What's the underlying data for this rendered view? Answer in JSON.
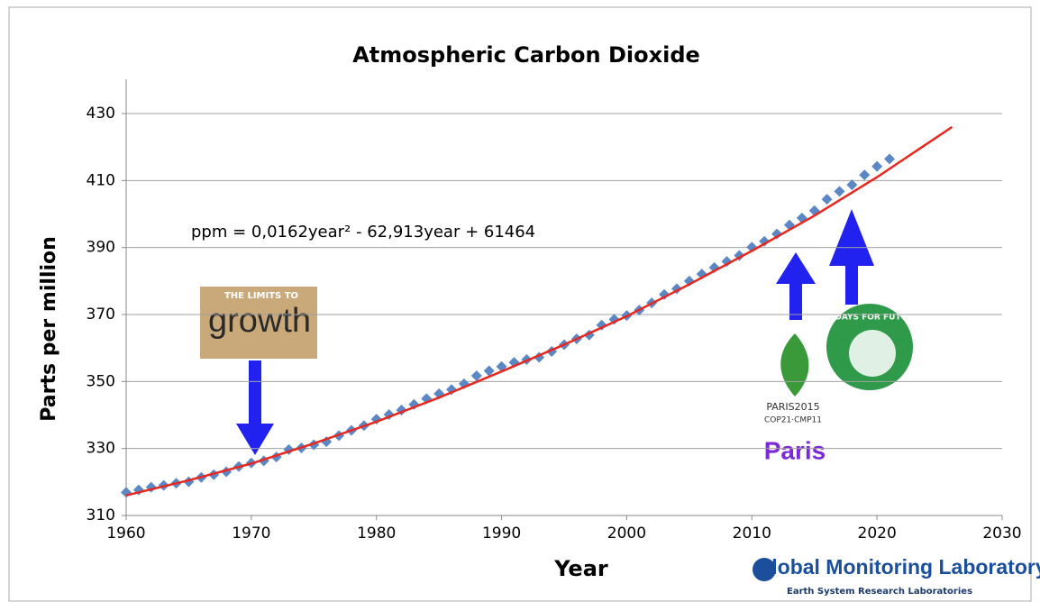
{
  "chart_data": {
    "type": "scatter",
    "title": "Atmospheric Carbon Dioxide",
    "x_label": "Year",
    "y_label": "Parts per million",
    "xlim": [
      1960,
      2030
    ],
    "xticks": [
      1960,
      1970,
      1980,
      1990,
      2000,
      2010,
      2020,
      2030
    ],
    "ylim": [
      310,
      430
    ],
    "yticks": [
      310,
      330,
      350,
      370,
      390,
      410,
      430
    ],
    "grid": true,
    "series": [
      {
        "type": "scatter",
        "color": "#5b87c5",
        "x": [
          1960,
          1961,
          1962,
          1963,
          1964,
          1965,
          1966,
          1967,
          1968,
          1969,
          1970,
          1971,
          1972,
          1973,
          1974,
          1975,
          1976,
          1977,
          1978,
          1979,
          1980,
          1981,
          1982,
          1983,
          1984,
          1985,
          1986,
          1987,
          1988,
          1989,
          1990,
          1991,
          1992,
          1993,
          1994,
          1995,
          1996,
          1997,
          1998,
          1999,
          2000,
          2001,
          2002,
          2003,
          2004,
          2005,
          2006,
          2007,
          2008,
          2009,
          2010,
          2011,
          2012,
          2013,
          2014,
          2015,
          2016,
          2017,
          2018,
          2019,
          2020,
          2021
        ],
        "values": [
          316.91,
          317.64,
          318.45,
          318.99,
          319.62,
          320.04,
          321.37,
          322.18,
          323.05,
          324.62,
          325.68,
          326.32,
          327.46,
          329.68,
          330.19,
          331.12,
          332.03,
          333.84,
          335.41,
          336.84,
          338.76,
          340.12,
          341.48,
          343.15,
          344.87,
          346.35,
          347.61,
          349.31,
          351.69,
          353.2,
          354.45,
          355.7,
          356.54,
          357.21,
          358.96,
          360.97,
          362.74,
          363.88,
          366.84,
          368.54,
          369.71,
          371.32,
          373.45,
          375.98,
          377.7,
          379.98,
          382.09,
          384.02,
          385.83,
          387.64,
          390.1,
          391.85,
          394.06,
          396.74,
          398.81,
          401.01,
          404.41,
          406.76,
          408.72,
          411.66,
          414.24,
          416.45
        ]
      },
      {
        "type": "line",
        "color": "#e8281e",
        "x": [
          1960,
          1965,
          1970,
          1975,
          1980,
          1985,
          1990,
          1995,
          2000,
          2005,
          2010,
          2015,
          2020,
          2026
        ],
        "values": [
          316,
          320.5,
          325.5,
          331.5,
          338,
          345.2,
          353,
          361,
          369.5,
          379,
          389,
          399.5,
          411,
          426
        ]
      }
    ],
    "annotations": {
      "equation": "ppm = 0,0162year² - 62,913year + 61464",
      "limits_title": "THE LIMITS TO",
      "limits_word": "growth",
      "paris_logo": "PARIS2015",
      "cop_logo": "COP21·CMP11",
      "paris_label": "Paris",
      "fridays_logo": "FRIDAYS FOR FUTURE",
      "source": "Global Monitoring Laboratory",
      "source_subtitle": "Earth System Research Laboratories"
    }
  }
}
